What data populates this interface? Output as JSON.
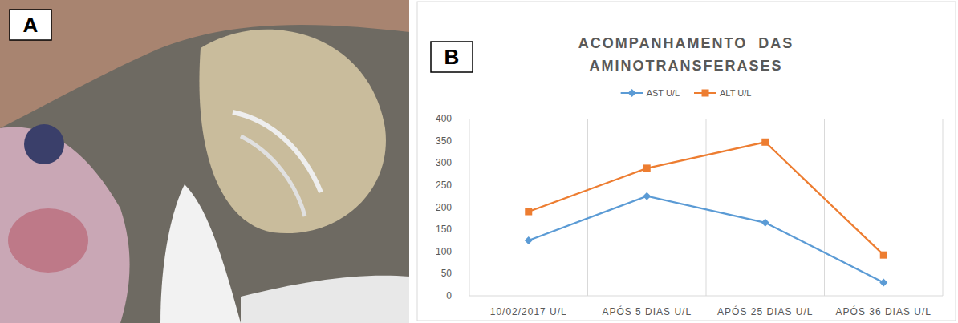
{
  "panel_labels": [
    "A",
    "B"
  ],
  "chart_data": {
    "type": "line",
    "title": "ACOMPANHAMENTO  DAS AMINOTRANSFERASES",
    "categories": [
      "10/02/2017 U/L",
      "APÓS 5 DIAS U/L",
      "APÓS 25 DIAS U/L",
      "APÓS 36 DIAS U/L"
    ],
    "series": [
      {
        "name": "AST U/L",
        "color": "#5b9bd5",
        "marker": "diamond",
        "values": [
          125,
          225,
          165,
          30
        ]
      },
      {
        "name": "ALT U/L",
        "color": "#ed7d31",
        "marker": "square",
        "values": [
          190,
          288,
          347,
          92
        ]
      }
    ],
    "ylim": [
      0,
      400
    ],
    "yticks": [
      0,
      50,
      100,
      150,
      200,
      250,
      300,
      350,
      400
    ],
    "grid": "x",
    "legend": "top"
  }
}
